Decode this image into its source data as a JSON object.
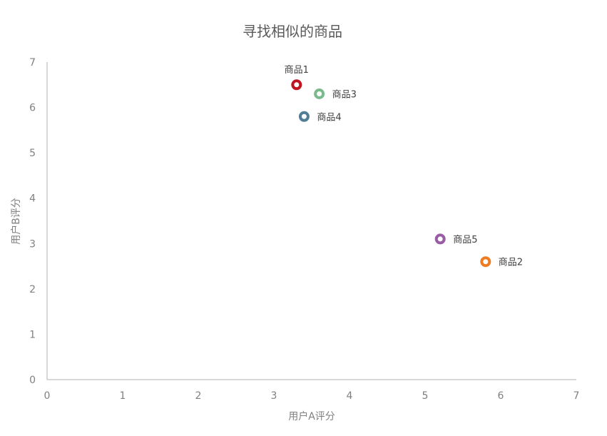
{
  "chart_data": {
    "type": "scatter",
    "title": "寻找相似的商品",
    "xlabel": "用户A评分",
    "ylabel": "用户B评分",
    "xlim": [
      0,
      7
    ],
    "ylim": [
      0,
      7
    ],
    "xticks": [
      "0",
      "1",
      "2",
      "3",
      "4",
      "5",
      "6",
      "7"
    ],
    "yticks": [
      "0",
      "1",
      "2",
      "3",
      "4",
      "5",
      "6",
      "7"
    ],
    "grid": false,
    "series": [
      {
        "name": "商品1",
        "x": 3.3,
        "y": 6.5,
        "color": "#C0141E",
        "label_position": "top"
      },
      {
        "name": "商品2",
        "x": 5.8,
        "y": 2.6,
        "color": "#EE7B22",
        "label_position": "right"
      },
      {
        "name": "商品3",
        "x": 3.6,
        "y": 6.3,
        "color": "#79B98C",
        "label_position": "right"
      },
      {
        "name": "商品4",
        "x": 3.4,
        "y": 5.8,
        "color": "#4F7E96",
        "label_position": "right"
      },
      {
        "name": "商品5",
        "x": 5.2,
        "y": 3.1,
        "color": "#9B5CA6",
        "label_position": "right"
      }
    ]
  }
}
